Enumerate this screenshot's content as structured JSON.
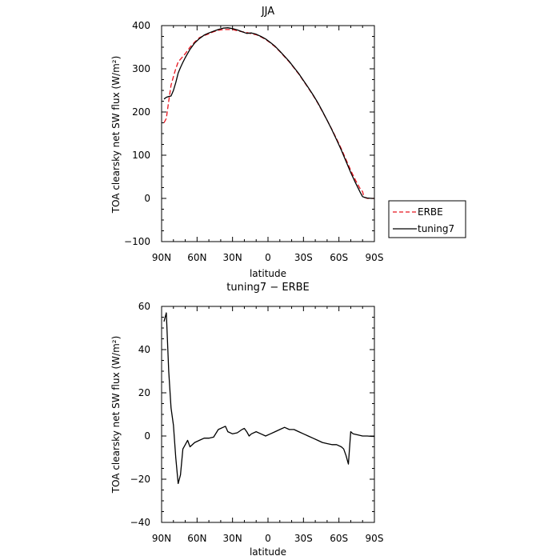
{
  "chart_data": [
    {
      "type": "line",
      "title": "JJA",
      "xlabel": "latitude",
      "ylabel": "TOA clearsky net SW flux (W/m²)",
      "xlim": [
        90,
        -90
      ],
      "ylim": [
        -100,
        400
      ],
      "x_tick_values": [
        90,
        60,
        30,
        0,
        -30,
        -60,
        -90
      ],
      "x_tick_labels": [
        "90N",
        "60N",
        "30N",
        "0",
        "30S",
        "60S",
        "90S"
      ],
      "y_tick_values": [
        -100,
        0,
        100,
        200,
        300,
        400
      ],
      "y_tick_labels": [
        "−100",
        "0",
        "100",
        "200",
        "300",
        "400"
      ],
      "legend": {
        "placement": "outside-right-bottom"
      },
      "series": [
        {
          "name": "ERBE",
          "color": "#e8141e",
          "dash": "dashed",
          "points": [
            [
              88,
              175
            ],
            [
              86,
              185
            ],
            [
              84,
              225
            ],
            [
              82,
              262
            ],
            [
              80,
              282
            ],
            [
              78,
              300
            ],
            [
              76,
              316
            ],
            [
              74,
              322
            ],
            [
              70,
              335
            ],
            [
              66,
              350
            ],
            [
              62,
              362
            ],
            [
              58,
              372
            ],
            [
              54,
              377
            ],
            [
              50,
              381
            ],
            [
              46,
              386
            ],
            [
              42,
              389
            ],
            [
              38,
              391
            ],
            [
              34,
              391
            ],
            [
              30,
              391
            ],
            [
              26,
              388
            ],
            [
              22,
              386
            ],
            [
              18,
              384
            ],
            [
              14,
              381
            ],
            [
              10,
              379
            ],
            [
              6,
              374
            ],
            [
              2,
              368
            ],
            [
              -2,
              360
            ],
            [
              -6,
              351
            ],
            [
              -10,
              340
            ],
            [
              -14,
              328
            ],
            [
              -18,
              316
            ],
            [
              -22,
              302
            ],
            [
              -26,
              288
            ],
            [
              -30,
              272
            ],
            [
              -34,
              256
            ],
            [
              -38,
              239
            ],
            [
              -42,
              221
            ],
            [
              -46,
              201
            ],
            [
              -50,
              181
            ],
            [
              -54,
              160
            ],
            [
              -58,
              138
            ],
            [
              -62,
              115
            ],
            [
              -66,
              90
            ],
            [
              -70,
              65
            ],
            [
              -74,
              42
            ],
            [
              -78,
              22
            ],
            [
              -80,
              16
            ],
            [
              -81,
              5
            ],
            [
              -82,
              2
            ],
            [
              -84,
              0
            ],
            [
              -88,
              0
            ],
            [
              -90,
              0
            ]
          ]
        },
        {
          "name": "tuning7",
          "color": "#000000",
          "dash": "solid",
          "points": [
            [
              88,
              230
            ],
            [
              86,
              234
            ],
            [
              84,
              236
            ],
            [
              82,
              237
            ],
            [
              80,
              250
            ],
            [
              78,
              268
            ],
            [
              76,
              290
            ],
            [
              74,
              303
            ],
            [
              72,
              315
            ],
            [
              70,
              326
            ],
            [
              66,
              345
            ],
            [
              62,
              360
            ],
            [
              58,
              370
            ],
            [
              54,
              378
            ],
            [
              50,
              383
            ],
            [
              46,
              387
            ],
            [
              42,
              391
            ],
            [
              38,
              394
            ],
            [
              34,
              395
            ],
            [
              30,
              393
            ],
            [
              26,
              390
            ],
            [
              22,
              386
            ],
            [
              18,
              382
            ],
            [
              14,
              383
            ],
            [
              10,
              380
            ],
            [
              6,
              375
            ],
            [
              2,
              369
            ],
            [
              -2,
              361
            ],
            [
              -6,
              352
            ],
            [
              -10,
              341
            ],
            [
              -14,
              329
            ],
            [
              -18,
              317
            ],
            [
              -22,
              303
            ],
            [
              -26,
              289
            ],
            [
              -30,
              273
            ],
            [
              -34,
              257
            ],
            [
              -38,
              240
            ],
            [
              -42,
              222
            ],
            [
              -46,
              202
            ],
            [
              -50,
              181
            ],
            [
              -54,
              159
            ],
            [
              -58,
              136
            ],
            [
              -62,
              112
            ],
            [
              -66,
              86
            ],
            [
              -70,
              60
            ],
            [
              -74,
              36
            ],
            [
              -78,
              14
            ],
            [
              -80,
              4
            ],
            [
              -82,
              2
            ],
            [
              -84,
              1
            ],
            [
              -88,
              0
            ],
            [
              -90,
              0
            ]
          ]
        }
      ]
    },
    {
      "type": "line",
      "title": "tuning7 − ERBE",
      "xlabel": "latitude",
      "ylabel": "TOA clearsky net SW flux (W/m²)",
      "xlim": [
        90,
        -90
      ],
      "ylim": [
        -40,
        60
      ],
      "x_tick_values": [
        90,
        60,
        30,
        0,
        -30,
        -60,
        -90
      ],
      "x_tick_labels": [
        "90N",
        "60N",
        "30N",
        "0",
        "30S",
        "60S",
        "90S"
      ],
      "y_tick_values": [
        -40,
        -20,
        0,
        20,
        40,
        60
      ],
      "y_tick_labels": [
        "−40",
        "−20",
        "0",
        "20",
        "40",
        "60"
      ],
      "series": [
        {
          "color": "#000000",
          "dash": "solid",
          "points": [
            [
              88,
              53
            ],
            [
              86,
              57
            ],
            [
              84,
              30
            ],
            [
              82,
              13
            ],
            [
              80,
              5
            ],
            [
              78,
              -10
            ],
            [
              76,
              -22
            ],
            [
              74,
              -18
            ],
            [
              72,
              -6
            ],
            [
              70,
              -4
            ],
            [
              68,
              -2
            ],
            [
              66,
              -5
            ],
            [
              62,
              -3
            ],
            [
              58,
              -2
            ],
            [
              54,
              -1
            ],
            [
              50,
              -1
            ],
            [
              46,
              -0.5
            ],
            [
              42,
              3
            ],
            [
              38,
              4
            ],
            [
              36,
              4.5
            ],
            [
              34,
              2
            ],
            [
              30,
              1
            ],
            [
              26,
              1.5
            ],
            [
              22,
              3
            ],
            [
              20,
              3.5
            ],
            [
              18,
              2
            ],
            [
              16,
              0
            ],
            [
              14,
              1
            ],
            [
              10,
              2
            ],
            [
              6,
              1
            ],
            [
              2,
              0
            ],
            [
              -2,
              1
            ],
            [
              -6,
              2
            ],
            [
              -10,
              3
            ],
            [
              -14,
              4
            ],
            [
              -18,
              3
            ],
            [
              -22,
              3
            ],
            [
              -26,
              2
            ],
            [
              -30,
              1
            ],
            [
              -34,
              0
            ],
            [
              -38,
              -1
            ],
            [
              -42,
              -2
            ],
            [
              -46,
              -3
            ],
            [
              -50,
              -3.5
            ],
            [
              -54,
              -4
            ],
            [
              -58,
              -4
            ],
            [
              -62,
              -5
            ],
            [
              -64,
              -6
            ],
            [
              -66,
              -9
            ],
            [
              -68,
              -13
            ],
            [
              -70,
              2
            ],
            [
              -72,
              1
            ],
            [
              -76,
              0.5
            ],
            [
              -80,
              0
            ],
            [
              -84,
              0
            ],
            [
              -88,
              -0.2
            ],
            [
              -90,
              -0.2
            ]
          ]
        }
      ]
    }
  ]
}
